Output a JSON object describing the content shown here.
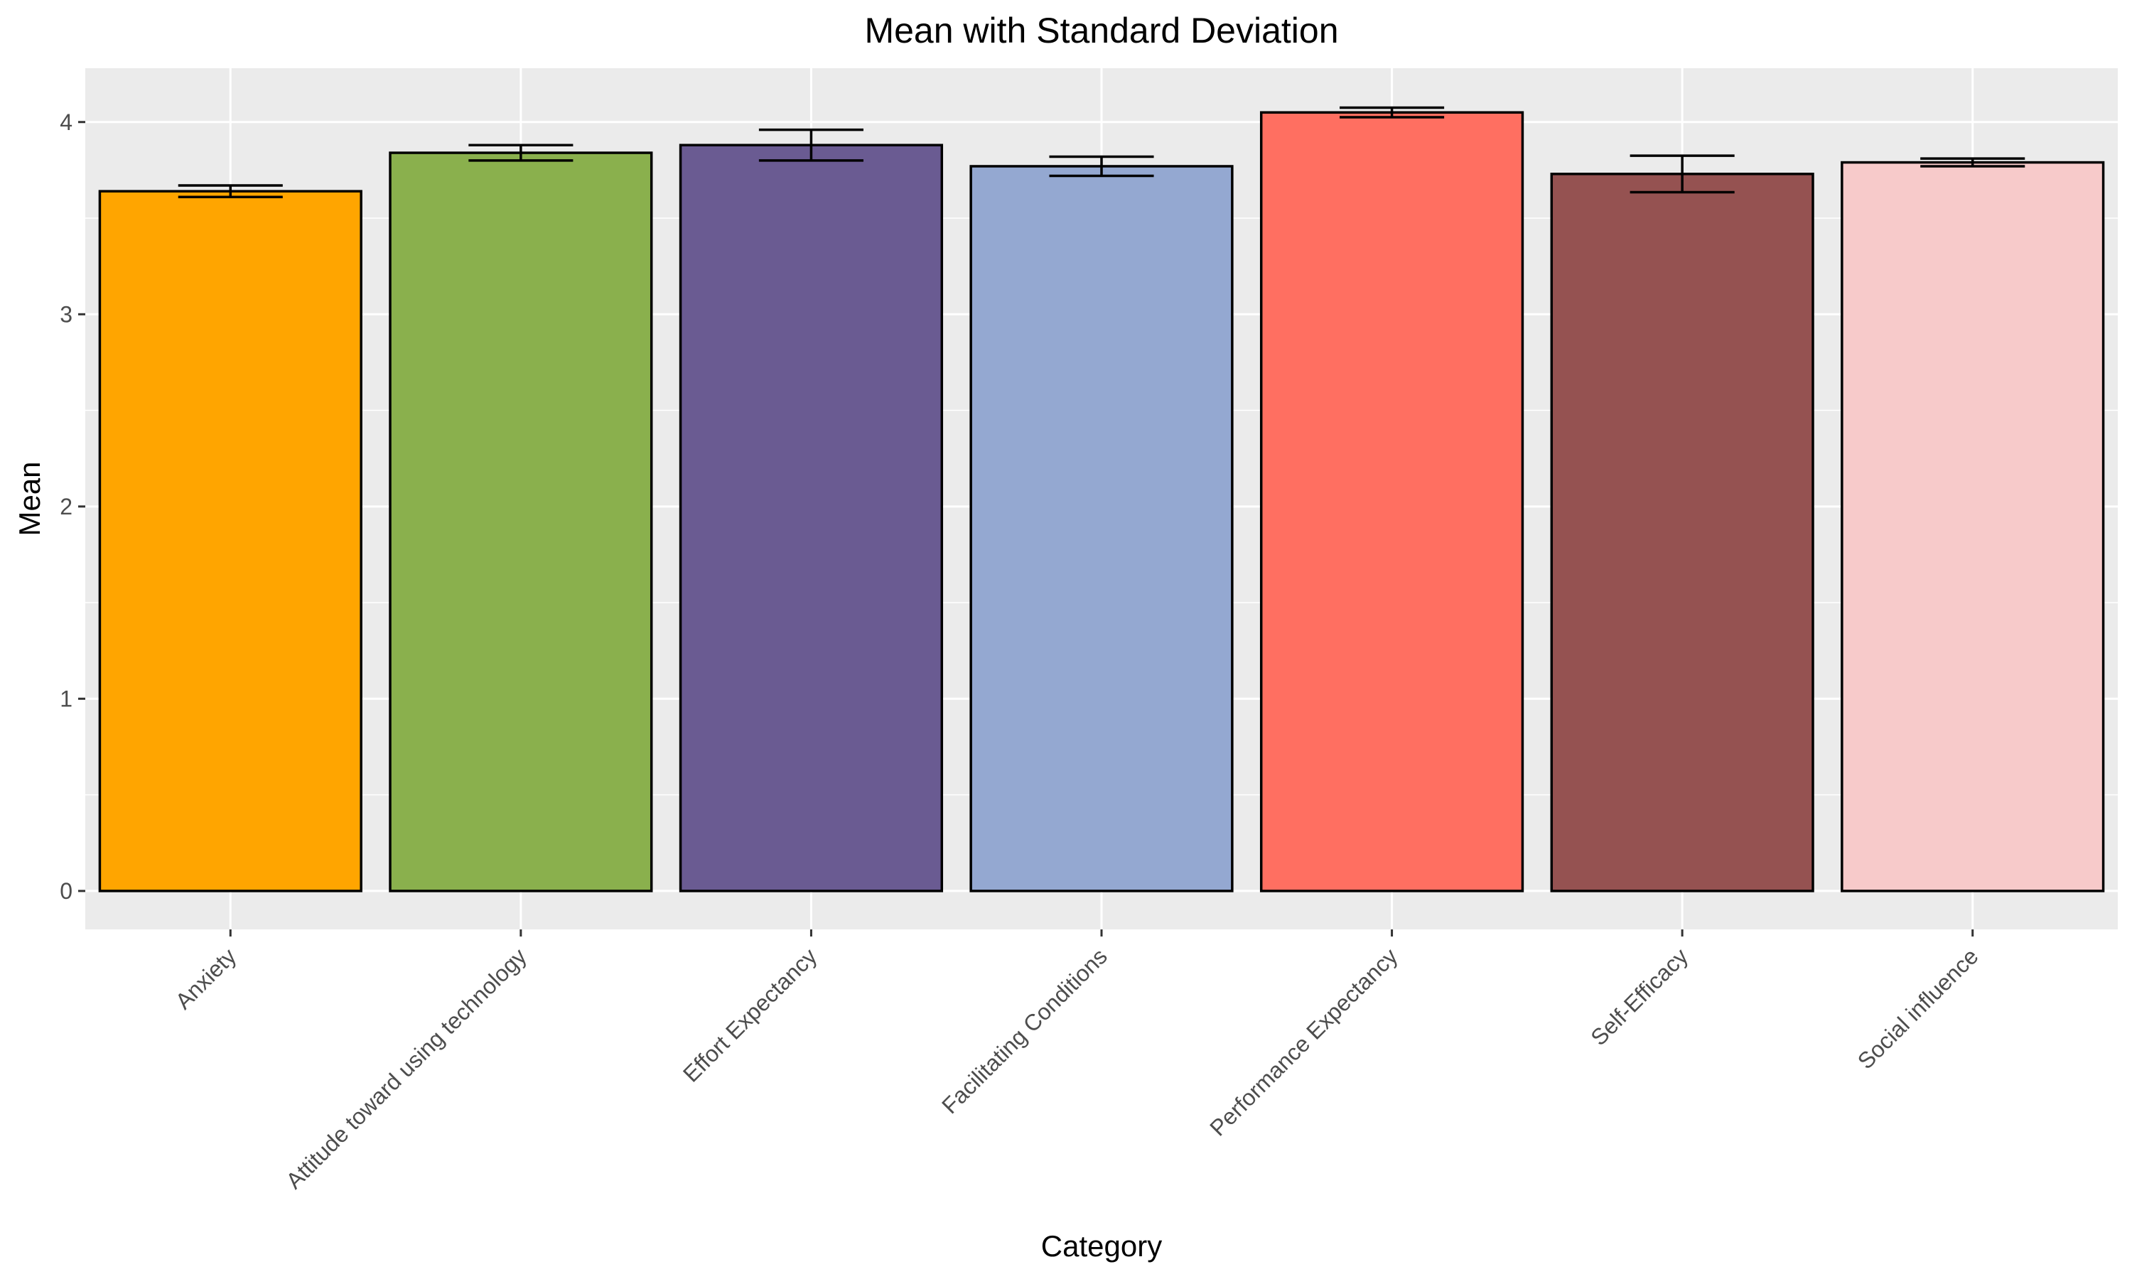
{
  "chart_data": {
    "type": "bar",
    "title": "Mean with Standard Deviation",
    "xlabel": "Category",
    "ylabel": "Mean",
    "ylim": [
      -0.2,
      4.28
    ],
    "yticks": [
      0,
      1,
      2,
      3,
      4
    ],
    "grid": true,
    "legend": "none",
    "categories": [
      "Anxiety",
      "Attitude toward using technology",
      "Effort Expectancy",
      "Facilitating Conditions",
      "Performance Expectancy",
      "Self-Efficacy",
      "Social influence"
    ],
    "values": [
      3.64,
      3.84,
      3.88,
      3.77,
      4.05,
      3.73,
      3.79
    ],
    "sd": [
      0.03,
      0.04,
      0.08,
      0.05,
      0.025,
      0.095,
      0.02
    ],
    "colors": [
      "#FFA500",
      "#8AB04D",
      "#6A5B92",
      "#94A8D1",
      "#FF6F61",
      "#955251",
      "#F7CACA"
    ],
    "panel_background": "#EBEBEB",
    "grid_color": "#FFFFFF"
  }
}
